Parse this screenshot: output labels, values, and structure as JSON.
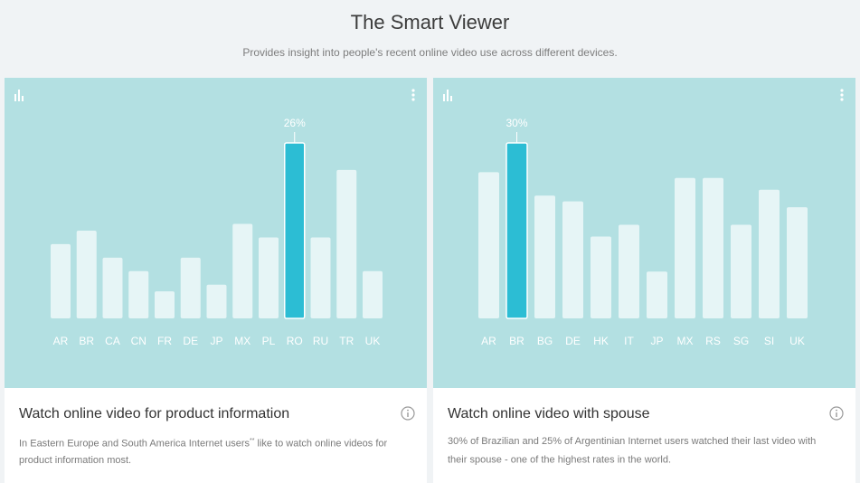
{
  "header": {
    "title": "The Smart Viewer",
    "subtitle": "Provides insight into people's recent online video use across different devices."
  },
  "colors": {
    "panel_bg": "#b3e0e2",
    "bar": "#e6f5f6",
    "bar_highlight": "#2cbdd4",
    "label": "#ffffff"
  },
  "icons": {
    "chart_menu": "bar-chart-icon",
    "more": "more-vertical-icon",
    "info": "info-icon"
  },
  "cards": [
    {
      "title": "Watch online video for product information",
      "desc_before": "In Eastern Europe and South America Internet users",
      "desc_sup": "**",
      "desc_after": " like to watch online videos for product information most."
    },
    {
      "title": "Watch online video with spouse",
      "desc_before": "30% of Brazilian and 25% of Argentinian Internet users watched their last video with their spouse - one of the highest rates in the world.",
      "desc_sup": "",
      "desc_after": ""
    }
  ],
  "chart_data": [
    {
      "type": "bar",
      "categories": [
        "AR",
        "BR",
        "CA",
        "CN",
        "FR",
        "DE",
        "JP",
        "MX",
        "PL",
        "RO",
        "RU",
        "TR",
        "UK"
      ],
      "values": [
        11,
        13,
        9,
        7,
        4,
        9,
        5,
        14,
        12,
        26,
        12,
        22,
        7
      ],
      "highlight": "RO",
      "highlight_label": "26%",
      "ylim": [
        0,
        26
      ]
    },
    {
      "type": "bar",
      "categories": [
        "AR",
        "BR",
        "BG",
        "DE",
        "HK",
        "IT",
        "JP",
        "MX",
        "RS",
        "SG",
        "SI",
        "UK"
      ],
      "values": [
        25,
        30,
        21,
        20,
        14,
        16,
        8,
        24,
        24,
        16,
        22,
        19
      ],
      "highlight": "BR",
      "highlight_label": "30%",
      "ylim": [
        0,
        30
      ]
    }
  ]
}
